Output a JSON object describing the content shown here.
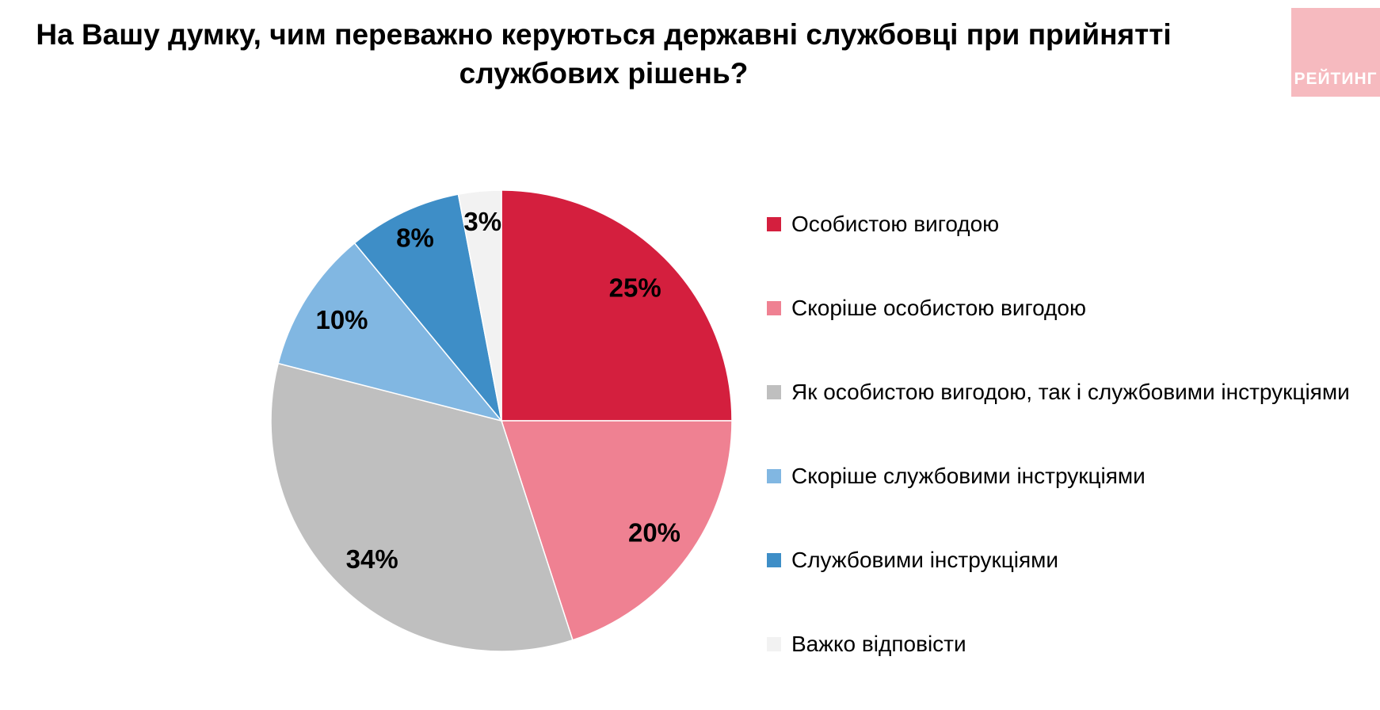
{
  "title": "На Вашу думку, чим переважно керуються державні службовці при прийнятті службових рішень?",
  "logo": {
    "text": "РЕЙТИНГ",
    "bg_color": "#f6babf",
    "text_color": "#ffffff"
  },
  "chart_data": {
    "type": "pie",
    "title": "На Вашу думку, чим переважно керуються державні службовці при прийнятті службових рішень?",
    "start_angle_deg": 0,
    "direction": "clockwise",
    "legend_position": "right",
    "slices": [
      {
        "label": "Особистою вигодою",
        "value": 25,
        "pct_label": "25%",
        "color": "#d41f3e",
        "label_radius": 0.82
      },
      {
        "label": "Скоріше особистою вигодою",
        "value": 20,
        "pct_label": "20%",
        "color": "#ef8192",
        "label_radius": 0.82
      },
      {
        "label": "Як особистою вигодою, так і службовими інструкціями",
        "value": 34,
        "pct_label": "34%",
        "color": "#bfbfbf",
        "label_radius": 0.82
      },
      {
        "label": "Скоріше службовими інструкціями",
        "value": 10,
        "pct_label": "10%",
        "color": "#81b7e2",
        "label_radius": 0.82
      },
      {
        "label": "Службовими інструкціями",
        "value": 8,
        "pct_label": "8%",
        "color": "#3e8ec7",
        "label_radius": 0.88
      },
      {
        "label": "Важко відповісти",
        "value": 3,
        "pct_label": "3%",
        "color": "#f2f2f2",
        "label_radius": 0.87
      }
    ]
  }
}
